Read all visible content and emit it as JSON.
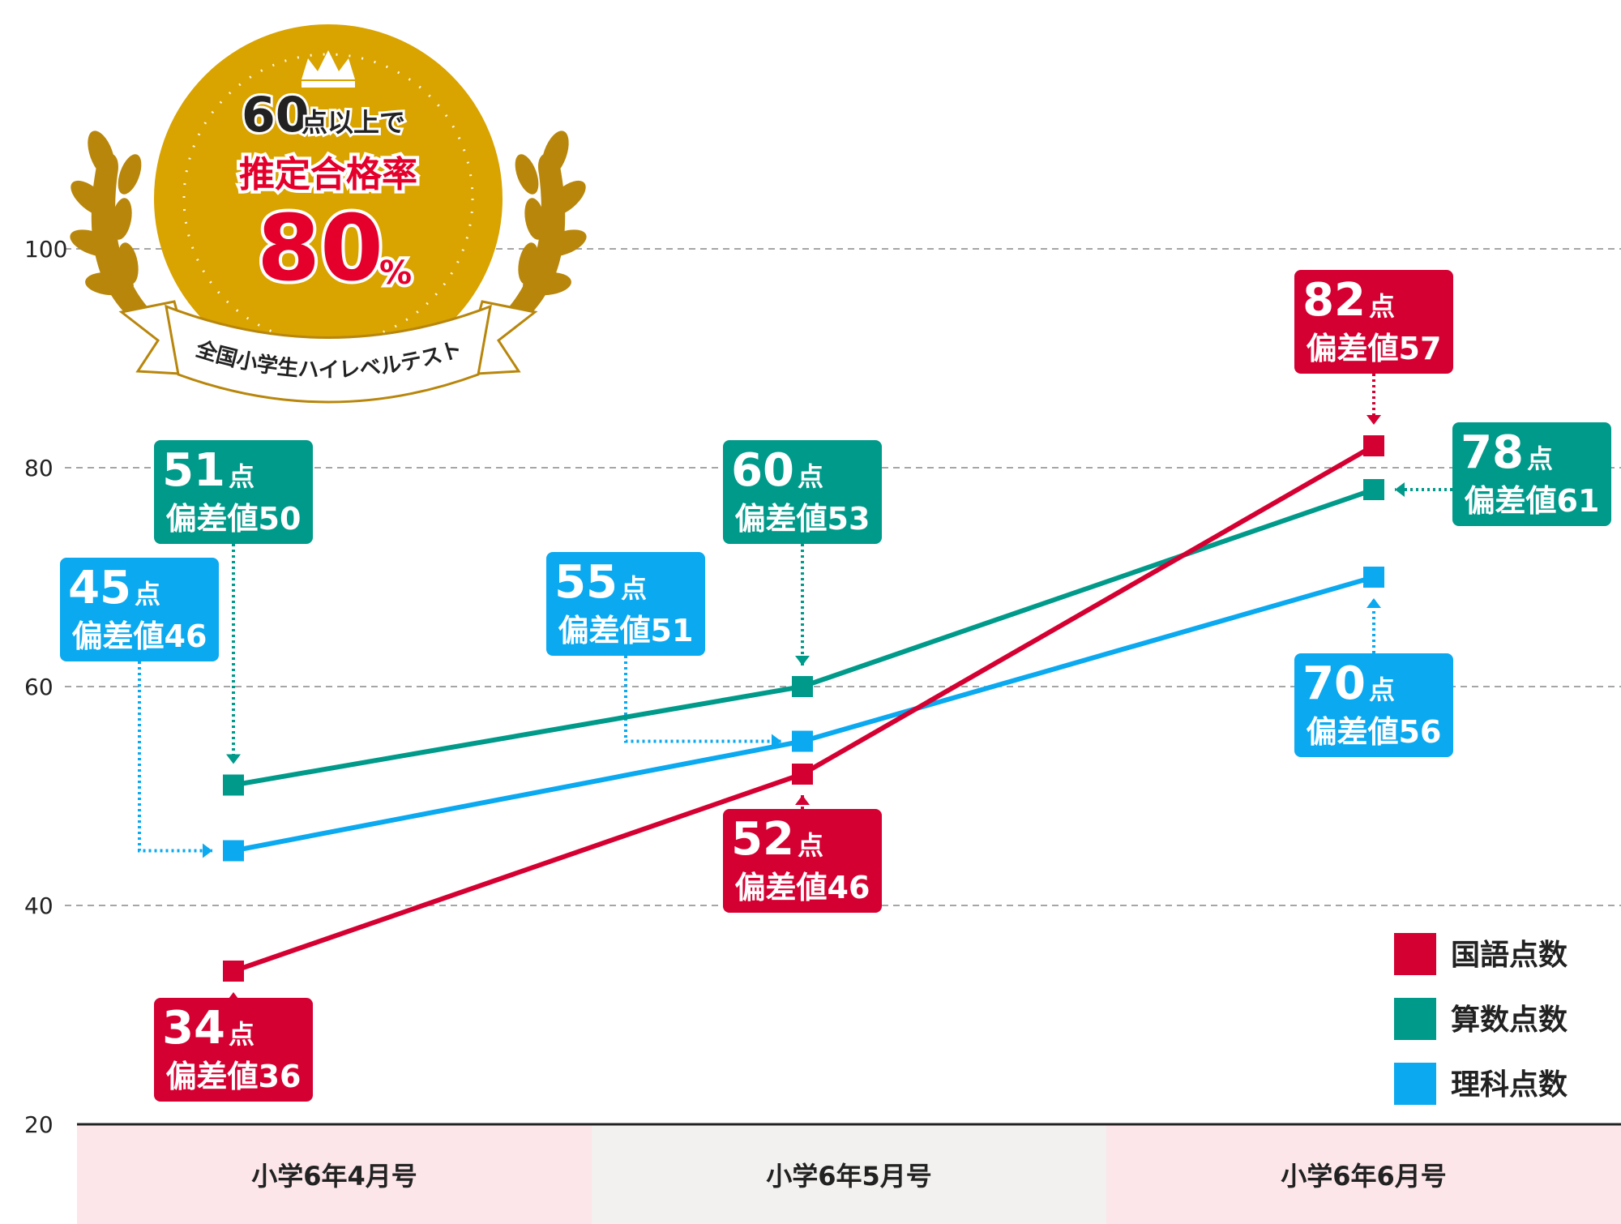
{
  "chart_data": {
    "type": "line",
    "categories": [
      "小学6年4月号",
      "小学6年5月号",
      "小学6年6月号"
    ],
    "ylim": [
      20,
      100
    ],
    "yticks": [
      20,
      40,
      60,
      80,
      100
    ],
    "grid": true,
    "legend_position": "bottom-right",
    "series": [
      {
        "name": "国語点数",
        "color": "#d50032",
        "values": [
          34,
          52,
          82
        ],
        "deviations": [
          36,
          46,
          57
        ]
      },
      {
        "name": "算数点数",
        "color": "#009a8a",
        "values": [
          51,
          60,
          78
        ],
        "deviations": [
          50,
          53,
          61
        ]
      },
      {
        "name": "理科点数",
        "color": "#0aa9f0",
        "values": [
          45,
          55,
          70
        ],
        "deviations": [
          46,
          51,
          56
        ]
      }
    ],
    "point_label_unit": "点",
    "deviation_prefix": "偏差値"
  },
  "badge": {
    "line1_number": "60",
    "line1_text": "点以上で",
    "line2": "推定合格率",
    "rate_number": "80",
    "rate_unit": "%",
    "ribbon": "全国小学生ハイレベルテスト",
    "gold_color": "#d9a300"
  }
}
